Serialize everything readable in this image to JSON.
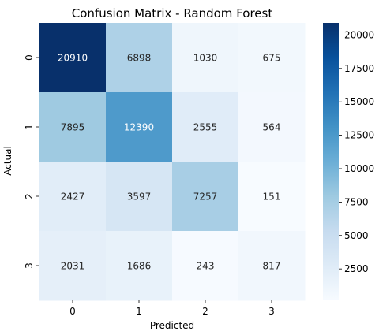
{
  "chart_data": {
    "type": "heatmap",
    "title": "Confusion Matrix - Random Forest",
    "xlabel": "Predicted",
    "ylabel": "Actual",
    "x_categories": [
      "0",
      "1",
      "2",
      "3"
    ],
    "y_categories": [
      "0",
      "1",
      "2",
      "3"
    ],
    "values": [
      [
        20910,
        6898,
        1030,
        675
      ],
      [
        7895,
        12390,
        2555,
        564
      ],
      [
        2427,
        3597,
        7257,
        151
      ],
      [
        2031,
        1686,
        243,
        817
      ]
    ],
    "colormap": "Blues",
    "color_range": [
      151,
      20910
    ],
    "colorbar_ticks": [
      "2500",
      "5000",
      "7500",
      "10000",
      "12500",
      "15000",
      "17500",
      "20000"
    ],
    "colorbar_tick_values": [
      2500,
      5000,
      7500,
      10000,
      12500,
      15000,
      17500,
      20000
    ],
    "annotations": true,
    "grid": false,
    "legend": "colorbar-right"
  }
}
